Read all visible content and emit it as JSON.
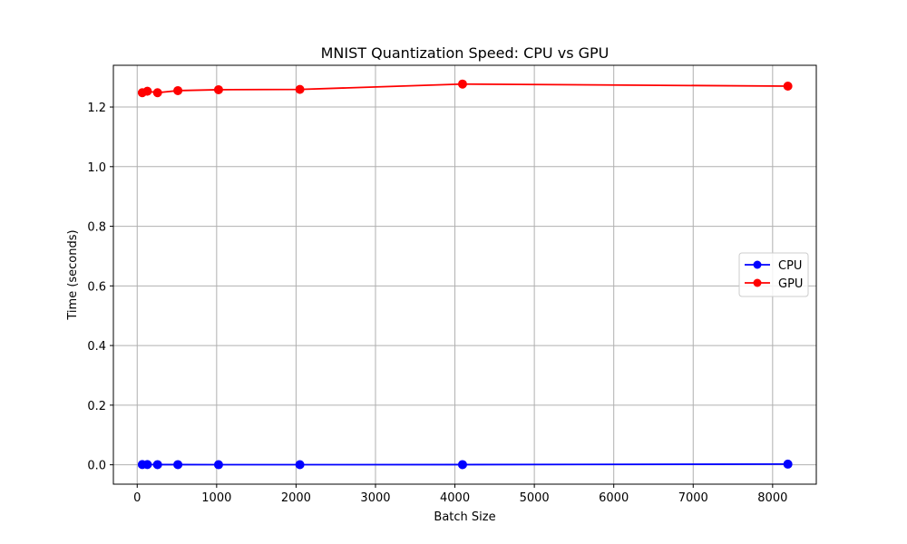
{
  "chart_data": {
    "type": "line",
    "title": "MNIST Quantization Speed: CPU vs GPU",
    "xlabel": "Batch Size",
    "ylabel": "Time (seconds)",
    "x": [
      64,
      128,
      256,
      512,
      1024,
      2048,
      4096,
      8192
    ],
    "xlim": [
      -300,
      8550
    ],
    "ylim": [
      -0.065,
      1.34
    ],
    "xticks": [
      0,
      1000,
      2000,
      3000,
      4000,
      5000,
      6000,
      7000,
      8000
    ],
    "yticks": [
      0.0,
      0.2,
      0.4,
      0.6,
      0.8,
      1.0,
      1.2
    ],
    "xtick_labels": [
      "0",
      "1000",
      "2000",
      "3000",
      "4000",
      "5000",
      "6000",
      "7000",
      "8000"
    ],
    "ytick_labels": [
      "0.0",
      "0.2",
      "0.4",
      "0.6",
      "0.8",
      "1.0",
      "1.2"
    ],
    "grid": true,
    "legend_position": "center-right",
    "series": [
      {
        "name": "CPU",
        "color": "#0000ff",
        "marker": "circle",
        "values": [
          0.0008,
          0.0008,
          0.0005,
          0.0005,
          0.0003,
          0.0004,
          0.0005,
          0.0022
        ]
      },
      {
        "name": "GPU",
        "color": "#ff0000",
        "marker": "circle",
        "values": [
          1.248,
          1.253,
          1.248,
          1.255,
          1.258,
          1.259,
          1.277,
          1.27
        ]
      }
    ]
  }
}
